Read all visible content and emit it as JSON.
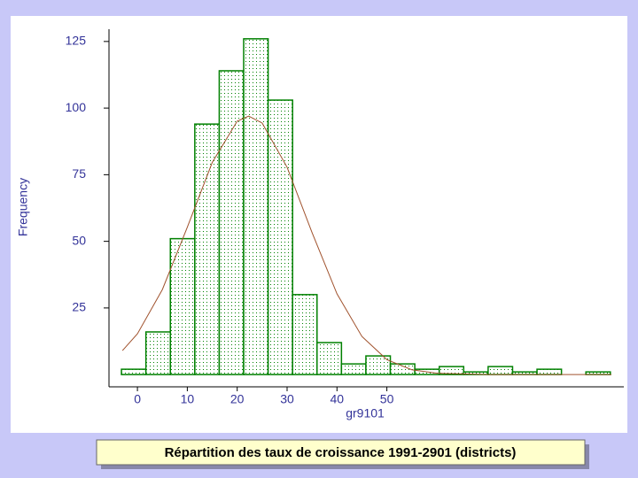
{
  "chart_data": {
    "type": "histogram",
    "caption": "Répartition des taux de croissance 1991-2901 (districts)",
    "x_label": "gr9101",
    "y_label": "Frequency",
    "bins": [
      -3.2,
      1.7,
      6.6,
      11.5,
      16.4,
      21.3,
      26.2,
      31.1,
      36.0,
      40.9,
      45.8,
      50.7,
      55.6,
      60.5,
      65.4,
      70.3,
      75.2,
      80.1,
      85.0,
      89.9,
      94.8
    ],
    "values": [
      2,
      16,
      51,
      94,
      114,
      126,
      103,
      30,
      12,
      4,
      7,
      4,
      2,
      3,
      1,
      3,
      1,
      2,
      0,
      1
    ],
    "color": "#008000",
    "curve": {
      "color": "#a0522d",
      "x": [
        -3,
        0,
        5,
        10,
        15,
        20,
        22.3,
        25,
        30,
        35,
        40,
        45,
        50,
        55,
        60,
        70,
        80,
        95
      ],
      "y": [
        9.0,
        15.3,
        31.9,
        55.3,
        79.6,
        95.1,
        97,
        94.4,
        77.8,
        53.3,
        30.3,
        14.3,
        5.6,
        1.8,
        0.5,
        0,
        0,
        0
      ]
    },
    "xlim": [
      -5.7,
      97.5
    ],
    "ylim": [
      -4.6,
      129.6
    ],
    "xticks": [
      0,
      10,
      20,
      30,
      40,
      50
    ],
    "yticks": [
      25,
      50,
      75,
      100,
      125
    ]
  }
}
